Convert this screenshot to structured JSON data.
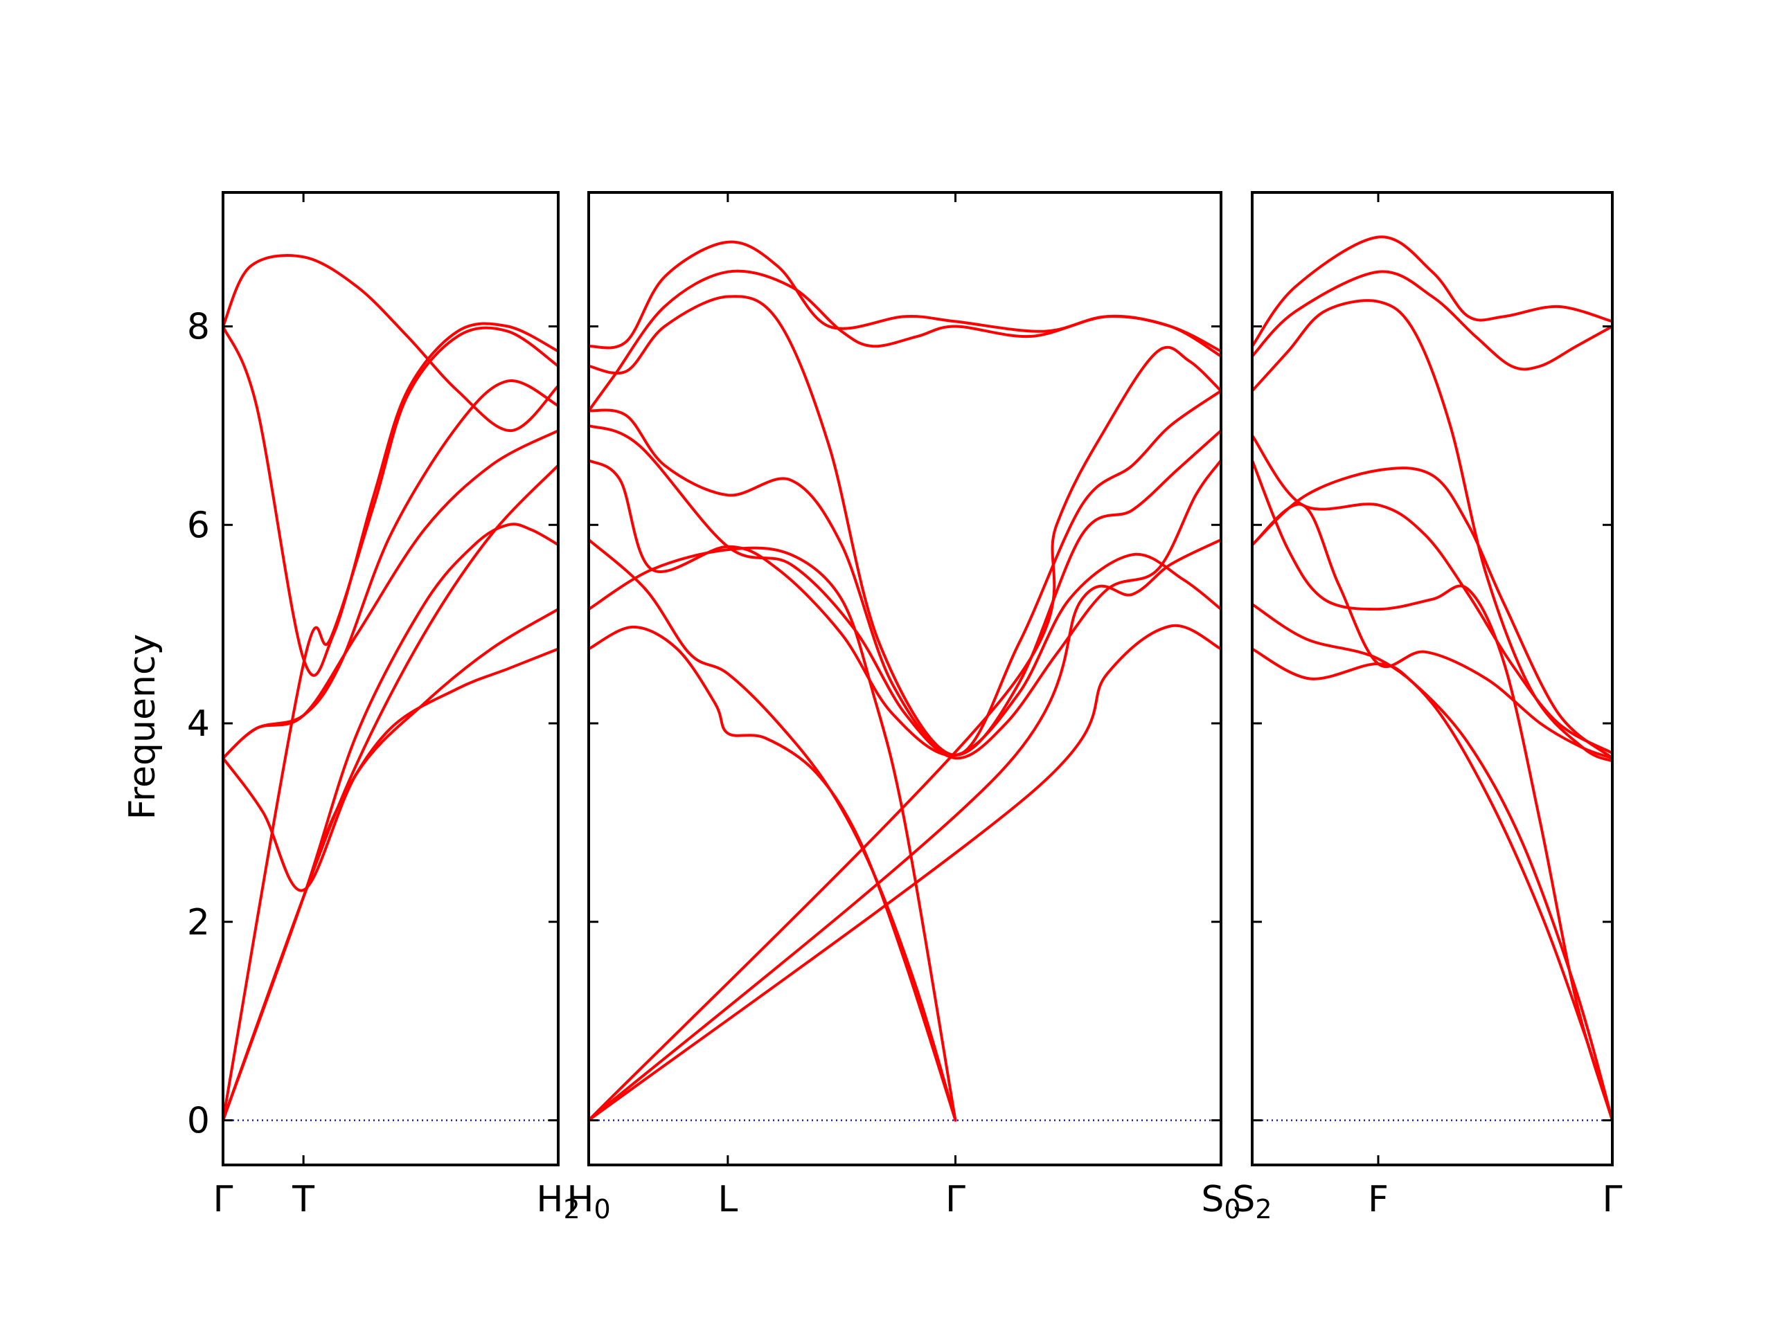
{
  "chart_data": {
    "type": "line",
    "ylabel": "Frequency",
    "ylim": [
      -0.45,
      9.35
    ],
    "yticks": [
      0,
      2,
      4,
      6,
      8
    ],
    "grid": false,
    "line_color": "#ff0000",
    "zero_line_color": "#0000cc",
    "panels": [
      {
        "name": "Γ-T-H2",
        "xlim": [
          0,
          1
        ],
        "xticks": [
          {
            "x": 0,
            "label": "Γ"
          },
          {
            "x": 0.24,
            "label": "T"
          },
          {
            "x": 1,
            "label": "H2"
          }
        ],
        "bands": [
          [
            [
              0,
              0
            ],
            [
              0.24,
              2.25
            ],
            [
              0.4,
              3.9
            ],
            [
              0.6,
              5.2
            ],
            [
              0.75,
              5.8
            ],
            [
              0.85,
              6.0
            ],
            [
              0.92,
              5.95
            ],
            [
              1,
              5.8
            ]
          ],
          [
            [
              0,
              0
            ],
            [
              0.24,
              2.25
            ],
            [
              0.35,
              3.2
            ],
            [
              0.5,
              3.95
            ],
            [
              0.7,
              4.35
            ],
            [
              0.85,
              4.55
            ],
            [
              1,
              4.75
            ]
          ],
          [
            [
              0,
              3.65
            ],
            [
              0.12,
              3.1
            ],
            [
              0.24,
              2.32
            ],
            [
              0.4,
              3.5
            ],
            [
              0.6,
              4.2
            ],
            [
              0.8,
              4.75
            ],
            [
              1,
              5.15
            ]
          ],
          [
            [
              0,
              0
            ],
            [
              0.24,
              4.6
            ],
            [
              0.32,
              4.85
            ],
            [
              0.45,
              6.2
            ],
            [
              0.55,
              7.3
            ],
            [
              0.7,
              7.9
            ],
            [
              0.85,
              7.95
            ],
            [
              1,
              7.6
            ]
          ],
          [
            [
              0,
              8.0
            ],
            [
              0.1,
              7.2
            ],
            [
              0.24,
              4.65
            ],
            [
              0.33,
              4.9
            ],
            [
              0.45,
              6.3
            ],
            [
              0.55,
              7.35
            ],
            [
              0.7,
              7.95
            ],
            [
              0.85,
              8.0
            ],
            [
              1,
              7.75
            ]
          ],
          [
            [
              0,
              3.65
            ],
            [
              0.1,
              3.95
            ],
            [
              0.24,
              4.08
            ],
            [
              0.35,
              4.6
            ],
            [
              0.5,
              5.9
            ],
            [
              0.7,
              7.0
            ],
            [
              0.85,
              7.45
            ],
            [
              1,
              7.2
            ]
          ],
          [
            [
              0,
              3.65
            ],
            [
              0.1,
              3.95
            ],
            [
              0.24,
              4.08
            ],
            [
              0.4,
              4.9
            ],
            [
              0.6,
              5.95
            ],
            [
              0.8,
              6.6
            ],
            [
              1,
              6.95
            ]
          ],
          [
            [
              0,
              0
            ],
            [
              0.24,
              2.25
            ],
            [
              0.4,
              3.6
            ],
            [
              0.6,
              4.9
            ],
            [
              0.8,
              5.9
            ],
            [
              1,
              6.6
            ]
          ],
          [
            [
              0,
              8.0
            ],
            [
              0.08,
              8.6
            ],
            [
              0.24,
              8.7
            ],
            [
              0.4,
              8.4
            ],
            [
              0.55,
              7.9
            ],
            [
              0.7,
              7.35
            ],
            [
              0.86,
              6.95
            ],
            [
              1,
              7.4
            ]
          ]
        ]
      },
      {
        "name": "H0-L-Γ-S0",
        "xlim": [
          0,
          1
        ],
        "xticks": [
          {
            "x": 0,
            "label": "H0"
          },
          {
            "x": 0.22,
            "label": "L"
          },
          {
            "x": 0.58,
            "label": "Γ"
          },
          {
            "x": 1,
            "label": "S0"
          }
        ],
        "bands": [
          [
            [
              0,
              4.75
            ],
            [
              0.07,
              4.97
            ],
            [
              0.14,
              4.75
            ],
            [
              0.2,
              4.2
            ],
            [
              0.22,
              3.9
            ],
            [
              0.28,
              3.85
            ],
            [
              0.36,
              3.5
            ],
            [
              0.43,
              2.8
            ],
            [
              0.5,
              1.6
            ],
            [
              0.58,
              0
            ]
          ],
          [
            [
              0,
              5.85
            ],
            [
              0.09,
              5.35
            ],
            [
              0.16,
              4.7
            ],
            [
              0.22,
              4.5
            ],
            [
              0.3,
              4.0
            ],
            [
              0.38,
              3.35
            ],
            [
              0.45,
              2.5
            ],
            [
              0.52,
              1.3
            ],
            [
              0.58,
              0
            ]
          ],
          [
            [
              0,
              5.15
            ],
            [
              0.1,
              5.55
            ],
            [
              0.22,
              5.75
            ],
            [
              0.32,
              5.7
            ],
            [
              0.4,
              5.25
            ],
            [
              0.45,
              4.3
            ],
            [
              0.5,
              3.0
            ],
            [
              0.58,
              0
            ]
          ],
          [
            [
              0,
              6.65
            ],
            [
              0.05,
              6.45
            ],
            [
              0.1,
              5.55
            ],
            [
              0.22,
              5.78
            ],
            [
              0.3,
              5.55
            ],
            [
              0.4,
              4.9
            ],
            [
              0.48,
              4.1
            ],
            [
              0.58,
              3.68
            ],
            [
              0.68,
              4.3
            ],
            [
              0.76,
              5.25
            ],
            [
              0.86,
              5.7
            ],
            [
              0.94,
              5.45
            ],
            [
              1,
              5.15
            ]
          ],
          [
            [
              0,
              7.0
            ],
            [
              0.08,
              6.8
            ],
            [
              0.22,
              5.78
            ],
            [
              0.32,
              5.6
            ],
            [
              0.42,
              4.95
            ],
            [
              0.5,
              4.1
            ],
            [
              0.58,
              3.65
            ],
            [
              0.66,
              4.0
            ],
            [
              0.74,
              4.7
            ],
            [
              0.82,
              5.35
            ],
            [
              0.9,
              5.55
            ],
            [
              0.96,
              6.3
            ],
            [
              1,
              6.65
            ]
          ],
          [
            [
              0,
              7.15
            ],
            [
              0.06,
              7.1
            ],
            [
              0.12,
              6.6
            ],
            [
              0.22,
              6.3
            ],
            [
              0.32,
              6.45
            ],
            [
              0.4,
              5.8
            ],
            [
              0.48,
              4.4
            ],
            [
              0.58,
              3.68
            ],
            [
              0.68,
              4.4
            ],
            [
              0.78,
              5.9
            ],
            [
              0.86,
              6.15
            ],
            [
              0.93,
              6.55
            ],
            [
              1,
              6.95
            ]
          ],
          [
            [
              0,
              7.6
            ],
            [
              0.06,
              7.55
            ],
            [
              0.12,
              8.0
            ],
            [
              0.22,
              8.3
            ],
            [
              0.3,
              8.05
            ],
            [
              0.38,
              6.8
            ],
            [
              0.46,
              4.8
            ],
            [
              0.58,
              3.68
            ],
            [
              0.68,
              4.8
            ],
            [
              0.78,
              6.2
            ],
            [
              0.86,
              6.6
            ],
            [
              0.92,
              7.0
            ],
            [
              1,
              7.35
            ]
          ],
          [
            [
              0,
              7.15
            ],
            [
              0.04,
              7.5
            ],
            [
              0.12,
              8.2
            ],
            [
              0.22,
              8.55
            ],
            [
              0.32,
              8.4
            ],
            [
              0.4,
              7.95
            ],
            [
              0.45,
              7.8
            ],
            [
              0.52,
              7.9
            ],
            [
              0.58,
              8.0
            ],
            [
              0.7,
              7.9
            ],
            [
              0.82,
              8.1
            ],
            [
              0.92,
              8.0
            ],
            [
              1,
              7.75
            ]
          ],
          [
            [
              0,
              7.8
            ],
            [
              0.06,
              7.85
            ],
            [
              0.12,
              8.5
            ],
            [
              0.22,
              8.85
            ],
            [
              0.3,
              8.6
            ],
            [
              0.38,
              8.0
            ],
            [
              0.5,
              8.1
            ],
            [
              0.58,
              8.05
            ],
            [
              0.72,
              7.95
            ],
            [
              0.82,
              8.1
            ],
            [
              0.92,
              8.0
            ],
            [
              1,
              7.7
            ]
          ],
          [
            [
              0,
              0
            ],
            [
              0.65,
              3.5
            ],
            [
              0.78,
              5.25
            ],
            [
              0.86,
              5.3
            ],
            [
              0.92,
              5.6
            ],
            [
              1,
              5.85
            ]
          ],
          [
            [
              0,
              0
            ],
            [
              0.7,
              3.3
            ],
            [
              0.82,
              4.5
            ],
            [
              0.92,
              4.98
            ],
            [
              1,
              4.75
            ]
          ],
          [
            [
              0,
              0
            ],
            [
              0.66,
              4.3
            ],
            [
              0.74,
              6.0
            ],
            [
              0.82,
              7.0
            ],
            [
              0.9,
              7.75
            ],
            [
              0.95,
              7.65
            ],
            [
              1,
              7.35
            ]
          ]
        ]
      },
      {
        "name": "S2-F-Γ",
        "xlim": [
          0,
          1
        ],
        "xticks": [
          {
            "x": 0,
            "label": "S2"
          },
          {
            "x": 0.35,
            "label": "F"
          },
          {
            "x": 1,
            "label": "Γ"
          }
        ],
        "bands": [
          [
            [
              0,
              4.75
            ],
            [
              0.16,
              4.45
            ],
            [
              0.35,
              4.6
            ],
            [
              0.45,
              4.4
            ],
            [
              0.6,
              3.8
            ],
            [
              0.75,
              2.8
            ],
            [
              0.9,
              1.3
            ],
            [
              1,
              0
            ]
          ],
          [
            [
              0,
              5.2
            ],
            [
              0.15,
              4.85
            ],
            [
              0.35,
              4.65
            ],
            [
              0.5,
              4.2
            ],
            [
              0.65,
              3.3
            ],
            [
              0.8,
              2.1
            ],
            [
              0.92,
              0.9
            ],
            [
              1,
              0
            ]
          ],
          [
            [
              0,
              5.8
            ],
            [
              0.14,
              6.2
            ],
            [
              0.24,
              5.4
            ],
            [
              0.35,
              4.6
            ],
            [
              0.48,
              4.72
            ],
            [
              0.65,
              4.45
            ],
            [
              0.8,
              4.0
            ],
            [
              0.92,
              3.75
            ],
            [
              1,
              3.65
            ]
          ],
          [
            [
              0,
              6.65
            ],
            [
              0.1,
              5.75
            ],
            [
              0.2,
              5.25
            ],
            [
              0.35,
              5.15
            ],
            [
              0.5,
              5.25
            ],
            [
              0.6,
              5.35
            ],
            [
              0.7,
              4.6
            ],
            [
              0.8,
              3.0
            ],
            [
              0.9,
              1.2
            ],
            [
              1,
              0
            ]
          ],
          [
            [
              0,
              6.9
            ],
            [
              0.14,
              6.2
            ],
            [
              0.35,
              6.2
            ],
            [
              0.48,
              5.9
            ],
            [
              0.6,
              5.3
            ],
            [
              0.72,
              4.6
            ],
            [
              0.85,
              4.0
            ],
            [
              1,
              3.7
            ]
          ],
          [
            [
              0,
              5.8
            ],
            [
              0.15,
              6.3
            ],
            [
              0.35,
              6.55
            ],
            [
              0.5,
              6.5
            ],
            [
              0.6,
              6.0
            ],
            [
              0.7,
              5.2
            ],
            [
              0.85,
              4.1
            ],
            [
              1,
              3.65
            ]
          ],
          [
            [
              0,
              7.35
            ],
            [
              0.1,
              7.75
            ],
            [
              0.2,
              8.15
            ],
            [
              0.35,
              8.25
            ],
            [
              0.45,
              7.95
            ],
            [
              0.55,
              7.0
            ],
            [
              0.65,
              5.5
            ],
            [
              0.78,
              4.3
            ],
            [
              0.92,
              3.75
            ],
            [
              1,
              3.62
            ]
          ],
          [
            [
              0,
              7.7
            ],
            [
              0.12,
              8.15
            ],
            [
              0.35,
              8.55
            ],
            [
              0.5,
              8.3
            ],
            [
              0.62,
              7.9
            ],
            [
              0.72,
              7.6
            ],
            [
              0.8,
              7.6
            ],
            [
              0.9,
              7.8
            ],
            [
              1,
              8.0
            ]
          ],
          [
            [
              0,
              7.8
            ],
            [
              0.12,
              8.4
            ],
            [
              0.35,
              8.9
            ],
            [
              0.5,
              8.55
            ],
            [
              0.6,
              8.1
            ],
            [
              0.7,
              8.1
            ],
            [
              0.85,
              8.2
            ],
            [
              1,
              8.05
            ]
          ]
        ]
      }
    ]
  }
}
